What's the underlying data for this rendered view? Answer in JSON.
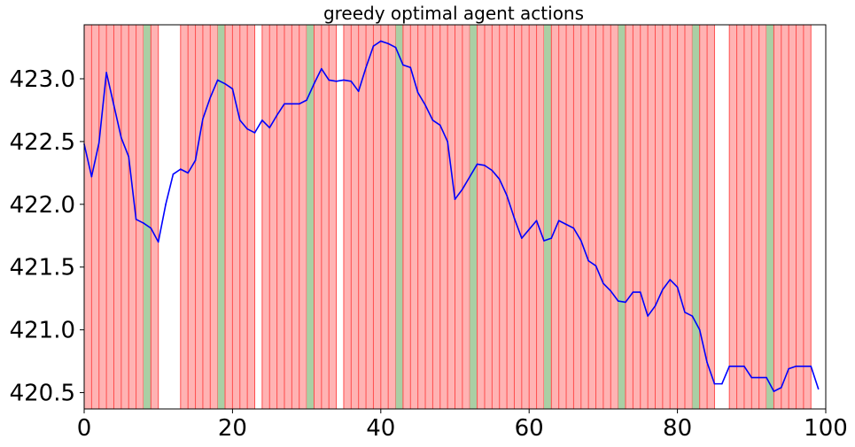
{
  "chart_data": {
    "type": "line",
    "title": "greedy optimal agent actions",
    "xlabel": "",
    "ylabel": "",
    "xlim": [
      0,
      100
    ],
    "ylim": [
      420.37,
      423.43
    ],
    "x_ticks": [
      0,
      20,
      40,
      60,
      80,
      100
    ],
    "x_tick_labels": [
      "0",
      "20",
      "40",
      "60",
      "80",
      "100"
    ],
    "y_ticks": [
      420.5,
      421.0,
      421.5,
      422.0,
      422.5,
      423.0
    ],
    "y_tick_labels": [
      "420.5",
      "421.0",
      "421.5",
      "422.0",
      "422.5",
      "423.0"
    ],
    "grid": false,
    "line_color": "#0000ff",
    "band_colors": {
      "red_fill": "#ffb3b3",
      "red_line": "#ff4d4d",
      "green_fill": "#a9cfa4"
    },
    "action_bands": [
      {
        "start": 0,
        "end": 8,
        "action": "red"
      },
      {
        "start": 8,
        "end": 9,
        "action": "green"
      },
      {
        "start": 9,
        "end": 10,
        "action": "red"
      },
      {
        "start": 13,
        "end": 18,
        "action": "red"
      },
      {
        "start": 18,
        "end": 19,
        "action": "green"
      },
      {
        "start": 19,
        "end": 23,
        "action": "red"
      },
      {
        "start": 24,
        "end": 30,
        "action": "red"
      },
      {
        "start": 30,
        "end": 31,
        "action": "green"
      },
      {
        "start": 31,
        "end": 34,
        "action": "red"
      },
      {
        "start": 35,
        "end": 42,
        "action": "red"
      },
      {
        "start": 42,
        "end": 43,
        "action": "green"
      },
      {
        "start": 43,
        "end": 52,
        "action": "red"
      },
      {
        "start": 52,
        "end": 53,
        "action": "green"
      },
      {
        "start": 53,
        "end": 62,
        "action": "red"
      },
      {
        "start": 62,
        "end": 63,
        "action": "green"
      },
      {
        "start": 63,
        "end": 72,
        "action": "red"
      },
      {
        "start": 72,
        "end": 73,
        "action": "green"
      },
      {
        "start": 73,
        "end": 82,
        "action": "red"
      },
      {
        "start": 82,
        "end": 83,
        "action": "green"
      },
      {
        "start": 83,
        "end": 85,
        "action": "red"
      },
      {
        "start": 87,
        "end": 92,
        "action": "red"
      },
      {
        "start": 92,
        "end": 93,
        "action": "green"
      },
      {
        "start": 93,
        "end": 98,
        "action": "red"
      }
    ],
    "series": [
      {
        "color": "#0000ff",
        "x": [
          0,
          1,
          2,
          3,
          4,
          5,
          6,
          7,
          8,
          9,
          10,
          11,
          12,
          13,
          14,
          15,
          16,
          17,
          18,
          19,
          20,
          21,
          22,
          23,
          24,
          25,
          26,
          27,
          28,
          29,
          30,
          31,
          32,
          33,
          34,
          35,
          36,
          37,
          38,
          39,
          40,
          41,
          42,
          43,
          44,
          45,
          46,
          47,
          48,
          49,
          50,
          51,
          52,
          53,
          54,
          55,
          56,
          57,
          58,
          59,
          60,
          61,
          62,
          63,
          64,
          65,
          66,
          67,
          68,
          69,
          70,
          71,
          72,
          73,
          74,
          75,
          76,
          77,
          78,
          79,
          80,
          81,
          82,
          83,
          84,
          85,
          86,
          87,
          88,
          89,
          90,
          91,
          92,
          93,
          94,
          95,
          96,
          97,
          98,
          99
        ],
        "values": [
          422.48,
          422.22,
          422.49,
          423.05,
          422.79,
          422.53,
          422.38,
          421.88,
          421.85,
          421.81,
          421.7,
          422.0,
          422.24,
          422.28,
          422.25,
          422.35,
          422.68,
          422.85,
          422.99,
          422.96,
          422.92,
          422.67,
          422.6,
          422.57,
          422.67,
          422.61,
          422.71,
          422.8,
          422.8,
          422.8,
          422.83,
          422.96,
          423.08,
          422.99,
          422.98,
          422.99,
          422.98,
          422.9,
          423.09,
          423.26,
          423.3,
          423.28,
          423.25,
          423.11,
          423.09,
          422.89,
          422.79,
          422.67,
          422.63,
          422.5,
          422.04,
          422.12,
          422.22,
          422.32,
          422.31,
          422.27,
          422.2,
          422.07,
          421.89,
          421.73,
          421.8,
          421.87,
          421.71,
          421.73,
          421.87,
          421.84,
          421.81,
          421.71,
          421.55,
          421.51,
          421.37,
          421.31,
          421.23,
          421.22,
          421.3,
          421.3,
          421.11,
          421.19,
          421.32,
          421.4,
          421.34,
          421.14,
          421.11,
          421.0,
          420.74,
          420.57,
          420.57,
          420.71,
          420.71,
          420.71,
          420.62,
          420.62,
          420.62,
          420.51,
          420.54,
          420.69,
          420.71,
          420.71,
          420.71,
          420.53
        ]
      }
    ]
  }
}
